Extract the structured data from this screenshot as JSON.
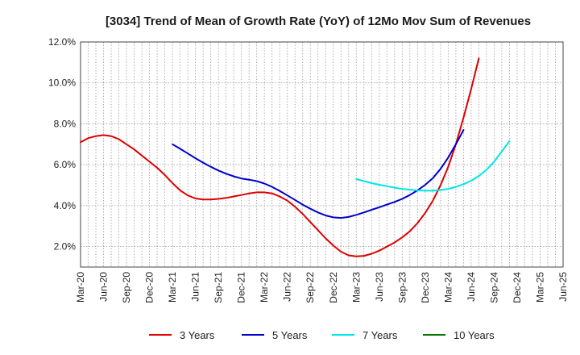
{
  "chart_data": {
    "type": "line",
    "title": "[3034]  Trend of Mean of Growth Rate (YoY) of 12Mo Mov Sum of Revenues",
    "xlabel": "",
    "ylabel": "",
    "ylim": [
      1.0,
      12.0
    ],
    "y_ticks": [
      2.0,
      4.0,
      6.0,
      8.0,
      10.0,
      12.0
    ],
    "y_tick_labels": [
      "2.0%",
      "4.0%",
      "6.0%",
      "8.0%",
      "10.0%",
      "12.0%"
    ],
    "x_tick_labels": [
      "Mar-20",
      "Jun-20",
      "Sep-20",
      "Dec-20",
      "Mar-21",
      "Jun-21",
      "Sep-21",
      "Dec-21",
      "Mar-22",
      "Jun-22",
      "Sep-22",
      "Dec-22",
      "Mar-23",
      "Jun-23",
      "Sep-23",
      "Dec-23",
      "Mar-24",
      "Jun-24",
      "Sep-24",
      "Dec-24",
      "Mar-25",
      "Jun-25"
    ],
    "grid": true,
    "legend_position": "bottom",
    "series": [
      {
        "name": "3 Years",
        "color": "#dd0000",
        "start_index": 0,
        "values": [
          7.1,
          7.3,
          7.4,
          7.45,
          7.4,
          7.25,
          7.0,
          6.75,
          6.45,
          6.15,
          5.85,
          5.5,
          5.1,
          4.75,
          4.5,
          4.35,
          4.3,
          4.3,
          4.33,
          4.38,
          4.45,
          4.52,
          4.6,
          4.65,
          4.65,
          4.6,
          4.45,
          4.25,
          3.95,
          3.6,
          3.2,
          2.8,
          2.4,
          2.05,
          1.75,
          1.57,
          1.52,
          1.55,
          1.65,
          1.8,
          2.0,
          2.2,
          2.45,
          2.75,
          3.15,
          3.65,
          4.25,
          5.0,
          5.9,
          7.0,
          8.3,
          9.7,
          11.2
        ]
      },
      {
        "name": "5 Years",
        "color": "#0000cc",
        "start_index": 12,
        "values": [
          7.0,
          6.78,
          6.55,
          6.32,
          6.1,
          5.9,
          5.72,
          5.56,
          5.43,
          5.33,
          5.27,
          5.2,
          5.08,
          4.92,
          4.72,
          4.5,
          4.28,
          4.05,
          3.85,
          3.67,
          3.52,
          3.43,
          3.4,
          3.45,
          3.55,
          3.67,
          3.8,
          3.92,
          4.05,
          4.18,
          4.33,
          4.52,
          4.75,
          5.02,
          5.35,
          5.8,
          6.35,
          7.0,
          7.7
        ]
      },
      {
        "name": "7 Years",
        "color": "#00e5e5",
        "start_index": 36,
        "values": [
          5.3,
          5.2,
          5.1,
          5.02,
          4.95,
          4.88,
          4.82,
          4.78,
          4.75,
          4.73,
          4.73,
          4.76,
          4.82,
          4.92,
          5.05,
          5.22,
          5.45,
          5.75,
          6.15,
          6.65,
          7.15
        ]
      },
      {
        "name": "10 Years",
        "color": "#007700",
        "start_index": 0,
        "values": []
      }
    ]
  }
}
